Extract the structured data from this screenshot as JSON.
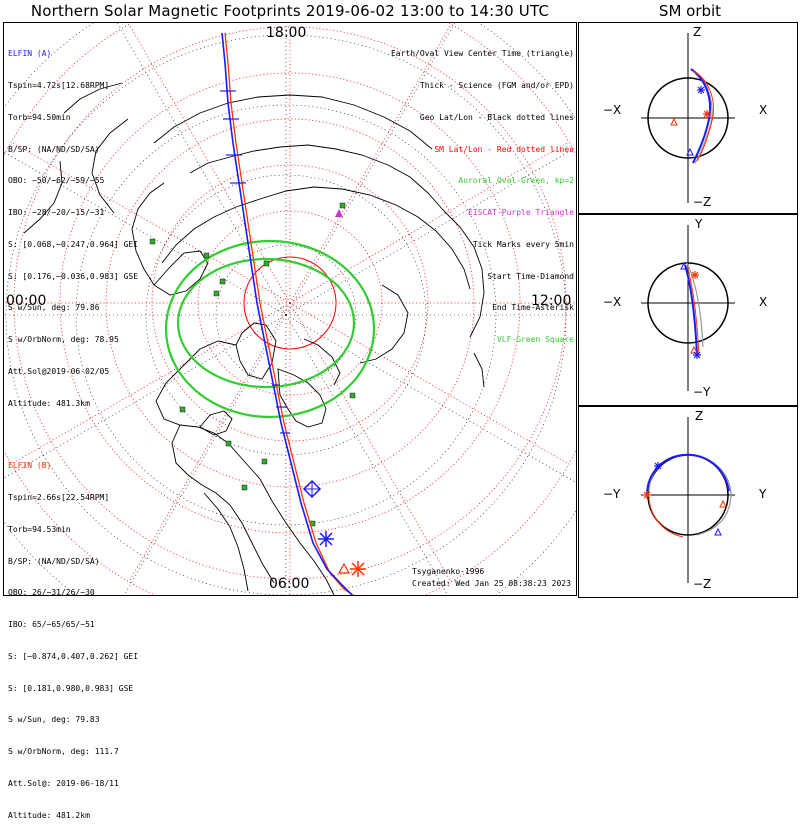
{
  "title": "Northern Solar Magnetic Footprints 2019-06-02 13:00 to 14:30 UTC",
  "side_title": "SM orbit",
  "mlt_labels": {
    "top": "18:00",
    "left": "00:00",
    "right": "12:00",
    "bottom": "06:00"
  },
  "elfin_a": {
    "header": "ELFIN (A)",
    "lines": [
      "Tspin=4.72s[12.68RPM]",
      "Torb=94.50min",
      "B/SP: (NA/ND/SD/SA)",
      "OBO: −50/−62/−59/−55",
      "IBO: −28/−20/−15/−31",
      "S: [0.068,−0.247,0.964] GEI",
      "S: [0.176,−0.036,0.983] GSE",
      "S w/Sun, deg: 79.86",
      "S w/OrbNorm, deg: 78.95",
      "Att.Sol@2019-06-02/05",
      "Altitude: 481.3km"
    ]
  },
  "elfin_b": {
    "header": "ELFIN (B)",
    "lines": [
      "Tspin=2.66s[22.54RPM]",
      "Torb=94.53min",
      "B/SP: (NA/ND/SD/SA)",
      "OBO: 26/−31/26/−30",
      "IBO: 65/−65/65/−51",
      "S: [−0.874,0.407,0.262] GEI",
      "S: [0.181,0.980,0.983] GSE",
      "S w/Sun, deg: 79.83",
      "S w/OrbNorm, deg: 111.7",
      "Att.Sol@: 2019-06-18/11",
      "Altitude: 481.2km"
    ]
  },
  "legend": [
    {
      "text": "Earth/Oval View Center Time (triangle)",
      "color": "#000000"
    },
    {
      "text": "Thick - Science (FGM and/or EPD)",
      "color": "#000000"
    },
    {
      "text": "Geo Lat/Lon - Black dotted lines",
      "color": "#000000"
    },
    {
      "text": "SM Lat/Lon - Red dotted lines",
      "color": "#ff0000"
    },
    {
      "text": "Auroral Oval-Green, kp=2",
      "color": "#33cc33"
    },
    {
      "text": "EISCAT-Purple Triangle",
      "color": "#cc33cc"
    },
    {
      "text": "Tick Marks every 5min",
      "color": "#000000"
    },
    {
      "text": "Start Time-Diamond",
      "color": "#000000"
    },
    {
      "text": "End Time-Asterisk",
      "color": "#000000"
    },
    {
      "text": "VLF-Green Square",
      "color": "#33cc33"
    }
  ],
  "credit": {
    "author": "Tsyganenko-1996",
    "created": "Created: Wed Jan 25 08:38:23 2023"
  },
  "orbit_panels": [
    {
      "top": "Z",
      "bottom": "−Z",
      "left": "−X",
      "right": "X"
    },
    {
      "top": "Y",
      "bottom": "−Y",
      "left": "−X",
      "right": "X"
    },
    {
      "top": "Z",
      "bottom": "−Z",
      "left": "−Y",
      "right": "Y"
    }
  ],
  "colors": {
    "elfin_a": "#1a1aff",
    "elfin_b": "#ff3300",
    "sm_grid": "#ff0000",
    "oval": "#33cc33",
    "geo_grid": "#000000",
    "orbit_ref": "#999999"
  }
}
